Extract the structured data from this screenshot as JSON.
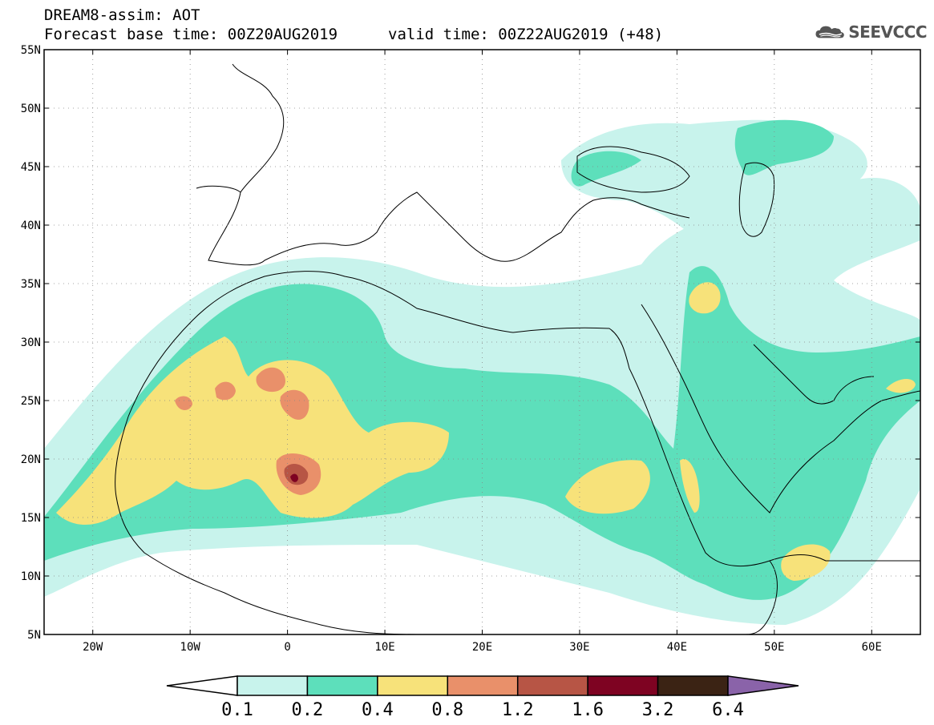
{
  "header": {
    "title": "DREAM8-assim: AOT",
    "base_time": "Forecast base time: 00Z20AUG2019",
    "valid_time": "valid time: 00Z22AUG2019 (+48)",
    "logo": "SEEVCCC"
  },
  "map": {
    "lon_range": [
      -25,
      65
    ],
    "lat_range": [
      5,
      55
    ],
    "lat_ticks": [
      "55N",
      "50N",
      "45N",
      "40N",
      "35N",
      "30N",
      "25N",
      "20N",
      "15N",
      "10N",
      "5N"
    ],
    "lon_ticks": [
      "20W",
      "10W",
      "0",
      "10E",
      "20E",
      "30E",
      "40E",
      "50E",
      "60E"
    ]
  },
  "colorbar": {
    "levels": [
      "0.1",
      "0.2",
      "0.4",
      "0.8",
      "1.2",
      "1.6",
      "3.2",
      "6.4"
    ],
    "colors": [
      "#c8f3ec",
      "#5ddfbb",
      "#f7e27a",
      "#e9906a",
      "#b75545",
      "#7e0322",
      "#3b2314",
      "#8a63a9"
    ]
  },
  "colors": {
    "c1": "#c8f3ec",
    "c2": "#5ddfbb",
    "c3": "#f7e27a",
    "c4": "#e9906a",
    "c5": "#b75545",
    "c6": "#7e0322"
  }
}
